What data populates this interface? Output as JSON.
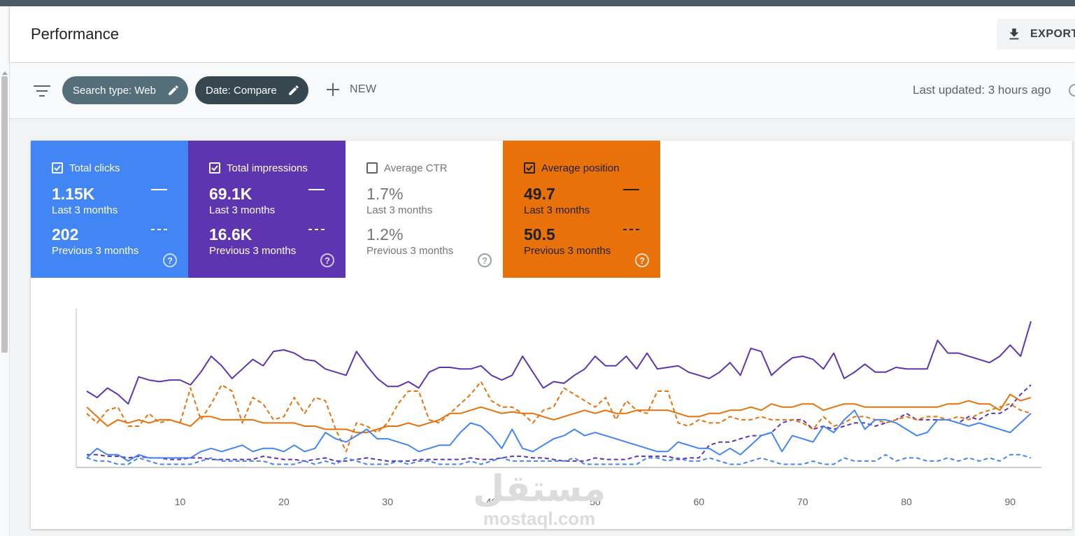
{
  "header": {
    "title": "Performance",
    "export_label": "EXPORT"
  },
  "filters": {
    "search_type_chip": "Search type: Web",
    "date_chip": "Date: Compare",
    "new_label": "NEW",
    "last_updated": "Last updated: 3 hours ago"
  },
  "metrics": [
    {
      "label": "Total clicks",
      "checked": true,
      "value": "1.15K",
      "period": "Last 3 months",
      "prev_value": "202",
      "prev_period": "Previous 3 months",
      "color": "#4285f4"
    },
    {
      "label": "Total impressions",
      "checked": true,
      "value": "69.1K",
      "period": "Last 3 months",
      "prev_value": "16.6K",
      "prev_period": "Previous 3 months",
      "color": "#5e35b1"
    },
    {
      "label": "Average CTR",
      "checked": false,
      "value": "1.7%",
      "period": "Last 3 months",
      "prev_value": "1.2%",
      "prev_period": "Previous 3 months",
      "color": "#ffffff"
    },
    {
      "label": "Average position",
      "checked": true,
      "value": "49.7",
      "period": "Last 3 months",
      "prev_value": "50.5",
      "prev_period": "Previous 3 months",
      "color": "#e8710a"
    }
  ],
  "watermark": {
    "arabic": "مستقل",
    "latin": "mostaql.com"
  },
  "chart_data": {
    "type": "line",
    "x_ticks": [
      10,
      20,
      30,
      40,
      50,
      60,
      70,
      80,
      90
    ],
    "xlim": [
      1,
      92
    ],
    "series": [
      {
        "color": "#5e35b1",
        "style": "solid",
        "values": [
          48,
          44,
          50,
          46,
          40,
          57,
          55,
          54,
          55,
          55,
          52,
          60,
          70,
          64,
          56,
          62,
          68,
          64,
          73,
          74,
          72,
          68,
          67,
          62,
          60,
          58,
          73,
          64,
          56,
          51,
          51,
          54,
          50,
          60,
          63,
          63,
          62,
          62,
          64,
          58,
          55,
          58,
          70,
          60,
          50,
          54,
          53,
          58,
          62,
          70,
          64,
          64,
          70,
          62,
          72,
          62,
          63,
          64,
          60,
          58,
          56,
          60,
          66,
          58,
          75,
          73,
          58,
          64,
          69,
          70,
          68,
          62,
          72,
          56,
          60,
          65,
          60,
          60,
          63,
          62,
          62,
          62,
          80,
          72,
          72,
          70,
          68,
          66,
          70,
          77,
          70,
          92
        ]
      },
      {
        "color": "#5e35b1",
        "style": "dashed",
        "values": [
          8,
          8,
          7,
          7,
          6,
          7,
          6,
          6,
          5,
          5,
          6,
          6,
          5,
          5,
          5,
          5,
          5,
          7,
          6,
          5,
          5,
          4,
          5,
          6,
          4,
          4,
          5,
          6,
          5,
          4,
          4,
          4,
          5,
          5,
          5,
          5,
          5,
          6,
          5,
          5,
          6,
          7,
          7,
          6,
          6,
          5,
          4,
          4,
          4,
          6,
          5,
          5,
          5,
          7,
          7,
          7,
          7,
          5,
          6,
          6,
          14,
          16,
          16,
          18,
          20,
          20,
          22,
          28,
          30,
          30,
          24,
          26,
          24,
          26,
          28,
          28,
          26,
          28,
          30,
          34,
          30,
          30,
          30,
          30,
          28,
          32,
          30,
          34,
          34,
          38,
          46,
          52
        ]
      },
      {
        "color": "#e8710a",
        "style": "solid",
        "values": [
          38,
          32,
          26,
          30,
          28,
          30,
          28,
          30,
          30,
          28,
          26,
          32,
          32,
          30,
          30,
          30,
          30,
          28,
          28,
          28,
          28,
          26,
          26,
          24,
          24,
          24,
          22,
          22,
          24,
          26,
          26,
          28,
          26,
          28,
          30,
          34,
          34,
          36,
          38,
          36,
          34,
          35,
          34,
          34,
          32,
          30,
          32,
          34,
          36,
          34,
          36,
          34,
          34,
          36,
          36,
          36,
          36,
          34,
          32,
          32,
          34,
          34,
          36,
          36,
          38,
          36,
          40,
          38,
          38,
          40,
          40,
          36,
          38,
          40,
          40,
          38,
          38,
          38,
          38,
          38,
          38,
          38,
          38,
          40,
          40,
          42,
          40,
          40,
          36,
          46,
          42,
          44
        ]
      },
      {
        "color": "#e8710a",
        "style": "dashed",
        "values": [
          34,
          28,
          36,
          38,
          26,
          26,
          34,
          28,
          30,
          28,
          50,
          30,
          40,
          52,
          48,
          28,
          44,
          40,
          30,
          32,
          44,
          34,
          44,
          42,
          24,
          10,
          28,
          26,
          22,
          28,
          40,
          48,
          48,
          30,
          28,
          34,
          40,
          46,
          54,
          42,
          38,
          38,
          34,
          28,
          36,
          38,
          50,
          46,
          42,
          38,
          44,
          30,
          42,
          36,
          34,
          48,
          48,
          28,
          26,
          30,
          28,
          28,
          32,
          30,
          30,
          32,
          30,
          30,
          30,
          28,
          24,
          32,
          26,
          28,
          32,
          32,
          30,
          28,
          30,
          32,
          30,
          32,
          32,
          30,
          32,
          30,
          34,
          36,
          38,
          40,
          36,
          34
        ]
      },
      {
        "color": "#4285f4",
        "style": "solid",
        "values": [
          6,
          12,
          8,
          8,
          4,
          8,
          6,
          6,
          6,
          6,
          6,
          10,
          12,
          10,
          12,
          14,
          10,
          12,
          12,
          10,
          14,
          10,
          12,
          22,
          18,
          16,
          20,
          24,
          18,
          18,
          16,
          14,
          10,
          12,
          14,
          14,
          22,
          28,
          26,
          20,
          12,
          24,
          12,
          10,
          14,
          18,
          20,
          24,
          20,
          22,
          20,
          18,
          16,
          14,
          12,
          10,
          10,
          16,
          14,
          12,
          12,
          8,
          12,
          8,
          14,
          20,
          22,
          10,
          20,
          18,
          16,
          26,
          22,
          30,
          36,
          24,
          30,
          30,
          28,
          24,
          20,
          22,
          30,
          30,
          28,
          26,
          28,
          26,
          24,
          22,
          28,
          34
        ]
      },
      {
        "color": "#4285f4",
        "style": "dashed",
        "values": [
          6,
          4,
          4,
          2,
          2,
          6,
          4,
          2,
          2,
          2,
          2,
          4,
          6,
          4,
          4,
          4,
          4,
          4,
          2,
          2,
          2,
          4,
          2,
          4,
          2,
          6,
          4,
          2,
          2,
          2,
          4,
          2,
          4,
          4,
          2,
          2,
          2,
          4,
          2,
          4,
          6,
          4,
          4,
          4,
          4,
          4,
          4,
          6,
          2,
          2,
          2,
          2,
          2,
          2,
          6,
          6,
          4,
          6,
          4,
          4,
          6,
          4,
          2,
          2,
          4,
          6,
          4,
          2,
          2,
          2,
          4,
          2,
          2,
          6,
          4,
          4,
          4,
          8,
          4,
          6,
          6,
          4,
          4,
          6,
          4,
          6,
          4,
          6,
          4,
          8,
          8,
          6
        ]
      }
    ]
  }
}
